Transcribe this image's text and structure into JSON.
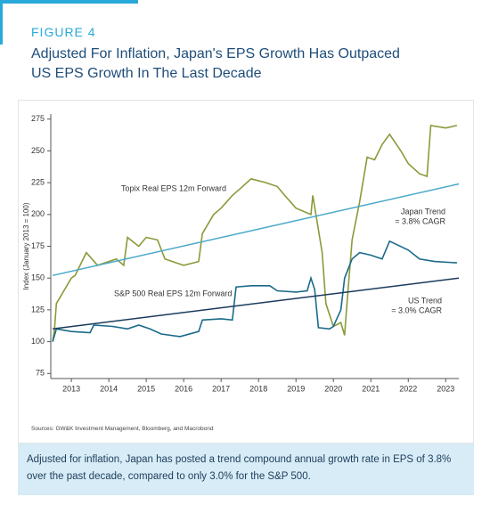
{
  "figure_label": "FIGURE 4",
  "title": "Adjusted For Inflation, Japan's EPS Growth Has Outpaced US EPS Growth In The Last Decade",
  "source": "Sources: GW&K Investment Management, Bloomberg, and Macrobond",
  "note": "Adjusted for inflation, Japan has posted a trend compound annual growth rate in EPS of 3.8% over the past decade, compared to only 3.0% for the S&P 500.",
  "chart_data": {
    "type": "line",
    "y_label": "Index (January 2013 = 100)",
    "xlim": [
      2012.95,
      2023.85
    ],
    "ylim": [
      71,
      279
    ],
    "yticks": [
      75,
      100,
      125,
      150,
      175,
      200,
      225,
      250,
      275
    ],
    "xticks": [
      {
        "value": 2013.5,
        "label": "2013"
      },
      {
        "value": 2014.5,
        "label": "2014"
      },
      {
        "value": 2015.5,
        "label": "2015"
      },
      {
        "value": 2016.5,
        "label": "2016"
      },
      {
        "value": 2017.5,
        "label": "2017"
      },
      {
        "value": 2018.5,
        "label": "2018"
      },
      {
        "value": 2019.5,
        "label": "2019"
      },
      {
        "value": 2020.5,
        "label": "2020"
      },
      {
        "value": 2021.5,
        "label": "2021"
      },
      {
        "value": 2022.5,
        "label": "2022"
      },
      {
        "value": 2023.5,
        "label": "2023"
      }
    ],
    "grid": false,
    "series": [
      {
        "name": "Topix Real EPS 12m Forward",
        "color": "#8a9a3a",
        "x": [
          2013.0,
          2013.05,
          2013.1,
          2013.3,
          2013.5,
          2013.6,
          2013.9,
          2014.2,
          2014.7,
          2014.9,
          2015.0,
          2015.3,
          2015.5,
          2015.8,
          2016.0,
          2016.3,
          2016.5,
          2016.9,
          2017.0,
          2017.3,
          2017.5,
          2017.8,
          2018.0,
          2018.3,
          2018.7,
          2019.0,
          2019.2,
          2019.5,
          2019.9,
          2019.95,
          2020.2,
          2020.3,
          2020.5,
          2020.7,
          2020.8,
          2020.85,
          2021.0,
          2021.2,
          2021.4,
          2021.6,
          2021.8,
          2022.0,
          2022.3,
          2022.5,
          2022.8,
          2023.0,
          2023.1,
          2023.5,
          2023.8
        ],
        "values": [
          100,
          110,
          130,
          140,
          150,
          152,
          170,
          160,
          165,
          160,
          182,
          175,
          182,
          180,
          165,
          162,
          160,
          163,
          185,
          200,
          205,
          215,
          220,
          228,
          225,
          222,
          215,
          205,
          200,
          215,
          170,
          130,
          112,
          115,
          105,
          125,
          180,
          210,
          245,
          243,
          255,
          263,
          250,
          240,
          232,
          230,
          270,
          268,
          270
        ]
      },
      {
        "name": "S&P 500 Real EPS 12m Forward",
        "color": "#1a6a8a",
        "x": [
          2013.0,
          2013.1,
          2013.5,
          2014.0,
          2014.1,
          2014.6,
          2015.0,
          2015.3,
          2015.6,
          2015.9,
          2016.4,
          2016.9,
          2017.0,
          2017.5,
          2017.8,
          2017.9,
          2018.3,
          2018.8,
          2019.0,
          2019.5,
          2019.8,
          2019.9,
          2020.0,
          2020.1,
          2020.4,
          2020.5,
          2020.7,
          2020.8,
          2021.0,
          2021.2,
          2021.5,
          2021.8,
          2022.0,
          2022.5,
          2022.8,
          2023.2,
          2023.8
        ],
        "values": [
          100,
          110,
          108,
          107,
          113,
          112,
          110,
          113,
          110,
          106,
          104,
          108,
          117,
          118,
          117,
          143,
          144,
          144,
          140,
          139,
          140,
          150,
          141,
          111,
          110,
          112,
          125,
          150,
          165,
          170,
          168,
          165,
          179,
          172,
          165,
          163,
          162
        ]
      },
      {
        "name": "Japan Trend",
        "note": "= 3.8% CAGR",
        "color": "#4aa8c8",
        "x": [
          2013.0,
          2023.85
        ],
        "values": [
          152,
          224
        ]
      },
      {
        "name": "US Trend",
        "note": "= 3.0% CAGR",
        "color": "#1a3a5a",
        "x": [
          2013.0,
          2023.85
        ],
        "values": [
          110,
          150
        ]
      }
    ]
  }
}
